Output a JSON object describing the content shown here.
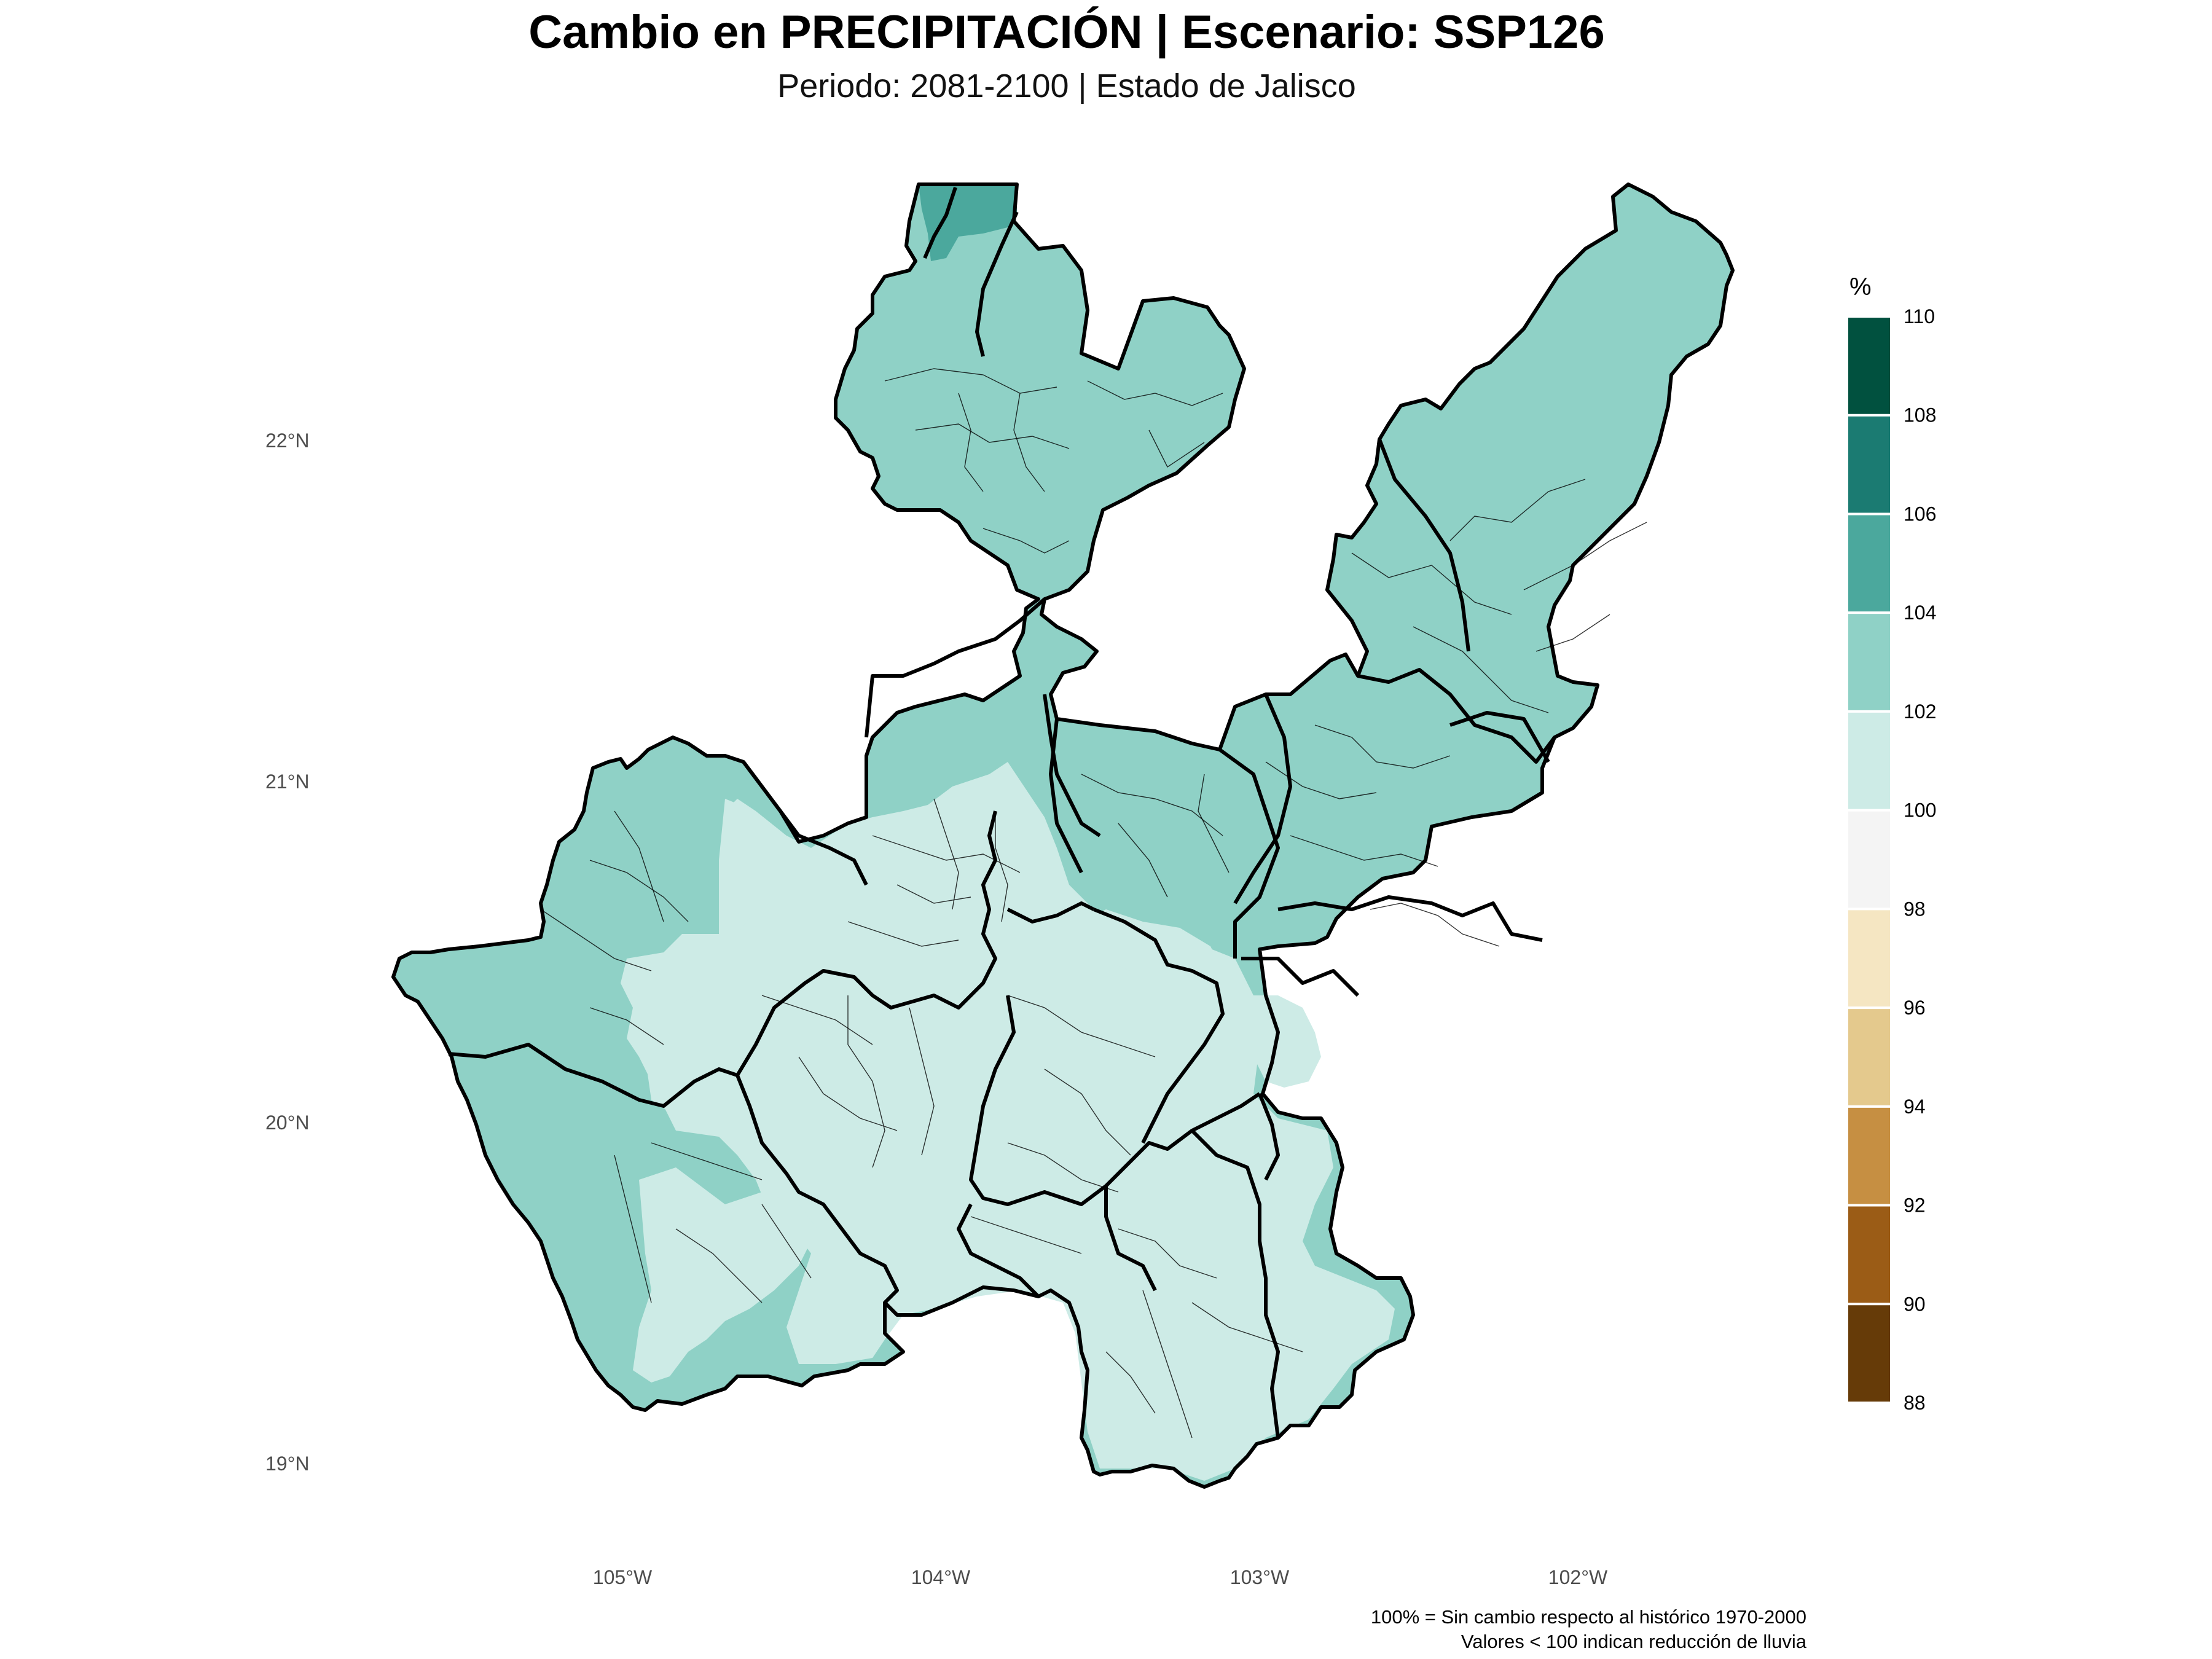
{
  "title": "Cambio en PRECIPITACIÓN | Escenario: SSP126",
  "subtitle": "Periodo: 2081-2100 | Estado de Jalisco",
  "map": {
    "type": "choropleth-raster",
    "lon_ticks": [
      "105°W",
      "104°W",
      "103°W",
      "102°W"
    ],
    "lat_ticks": [
      "22°N",
      "21°N",
      "20°N",
      "19°N"
    ],
    "regions": [
      {
        "name": "north",
        "value_class": "102-104"
      },
      {
        "name": "northeast",
        "value_class": "102-104"
      },
      {
        "name": "east",
        "value_class": "102-104"
      },
      {
        "name": "west-coast",
        "value_class": "102-104"
      },
      {
        "name": "center",
        "value_class": "100-102"
      },
      {
        "name": "south",
        "value_class": "100-102"
      },
      {
        "name": "southeast",
        "value_class": "102-104"
      }
    ],
    "colors": {
      "high": "#8fd1c6",
      "mid": "#cdebe6",
      "peak": "#4ba89d"
    }
  },
  "legend": {
    "title": "%",
    "labels": [
      "110",
      "108",
      "106",
      "104",
      "102",
      "100",
      "98",
      "96",
      "94",
      "92",
      "90",
      "88"
    ],
    "bins": [
      {
        "from": 108,
        "to": 110,
        "color": "#01513f"
      },
      {
        "from": 106,
        "to": 108,
        "color": "#1b7b72"
      },
      {
        "from": 104,
        "to": 106,
        "color": "#4ba89d"
      },
      {
        "from": 102,
        "to": 104,
        "color": "#8fd1c6"
      },
      {
        "from": 100,
        "to": 102,
        "color": "#cdebe6"
      },
      {
        "from": 98,
        "to": 100,
        "color": "#f4f4f4"
      },
      {
        "from": 96,
        "to": 98,
        "color": "#f5e6c2"
      },
      {
        "from": 94,
        "to": 96,
        "color": "#e4c98d"
      },
      {
        "from": 92,
        "to": 94,
        "color": "#c68f42"
      },
      {
        "from": 90,
        "to": 92,
        "color": "#9b5c16"
      },
      {
        "from": 88,
        "to": 90,
        "color": "#663b08"
      }
    ]
  },
  "caption": {
    "line1": "100% = Sin cambio respecto al histórico 1970-2000",
    "line2": "Valores < 100 indican reducción de lluvia"
  }
}
